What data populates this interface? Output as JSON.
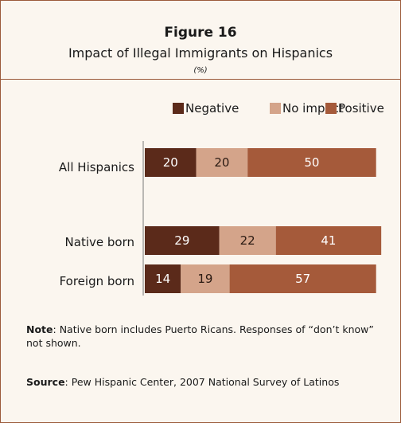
{
  "figure": {
    "label": "Figure 16",
    "title": "Impact of Illegal Immigrants on Hispanics",
    "unit": "(%)"
  },
  "chart_data": {
    "type": "bar",
    "orientation": "horizontal",
    "stacked": true,
    "categories": [
      "All Hispanics",
      "Native born",
      "Foreign born"
    ],
    "series": [
      {
        "name": "Negative",
        "values": [
          20,
          29,
          14
        ],
        "color": "#5b2a1a"
      },
      {
        "name": "No impact",
        "values": [
          20,
          22,
          19
        ],
        "color": "#d4a48a"
      },
      {
        "name": "Positive",
        "values": [
          50,
          41,
          57
        ],
        "color": "#a55a3a"
      }
    ],
    "legend_position": "top-right",
    "grid": false
  },
  "note": {
    "label": "Note",
    "text": ": Native born includes Puerto Ricans.  Responses of “don’t know” not shown."
  },
  "source": {
    "label": "Source",
    "text": ": Pew Hispanic Center, 2007 National Survey of Latinos"
  }
}
